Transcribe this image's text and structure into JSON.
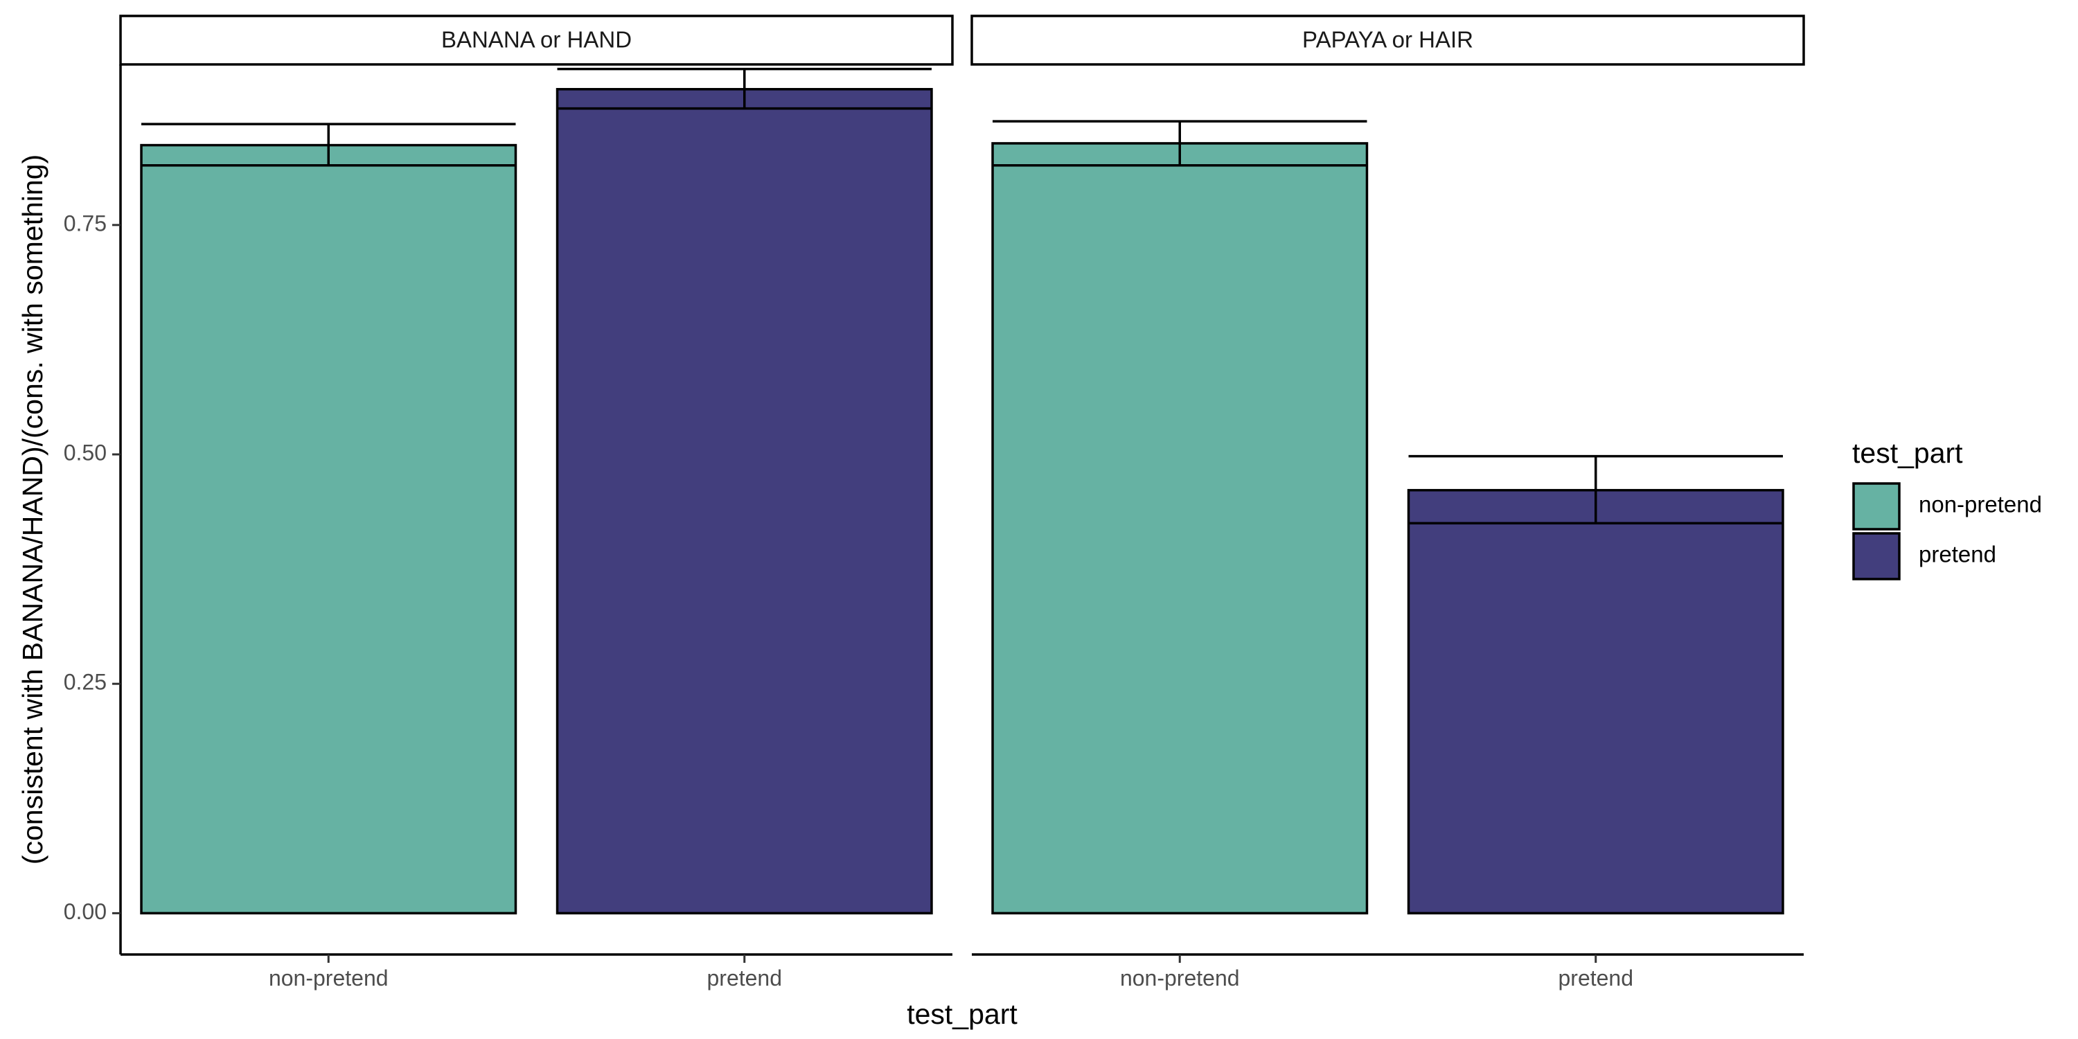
{
  "chart_data": {
    "type": "bar",
    "facets": [
      {
        "label": "BANANA or HAND",
        "categories": [
          "non-pretend",
          "pretend"
        ],
        "values": [
          0.837,
          0.898
        ],
        "error_low": [
          0.815,
          0.877
        ],
        "error_high": [
          0.86,
          0.92
        ]
      },
      {
        "label": "PAPAYA or HAIR",
        "categories": [
          "non-pretend",
          "pretend"
        ],
        "values": [
          0.839,
          0.461
        ],
        "error_low": [
          0.815,
          0.425
        ],
        "error_high": [
          0.863,
          0.498
        ]
      }
    ],
    "xlabel": "test_part",
    "ylabel": "(consistent with BANANA/HAND)/(cons. with something)",
    "ylim": [
      -0.045,
      0.925
    ],
    "yticks": [
      0.0,
      0.25,
      0.5,
      0.75
    ],
    "ytick_labels": [
      "0.00",
      "0.25",
      "0.50",
      "0.75"
    ],
    "grid": false,
    "legend": {
      "title": "test_part",
      "placement": "right",
      "entries": [
        "non-pretend",
        "pretend"
      ]
    },
    "colors": {
      "non-pretend": "#66b2a3",
      "pretend": "#423e7d"
    }
  }
}
